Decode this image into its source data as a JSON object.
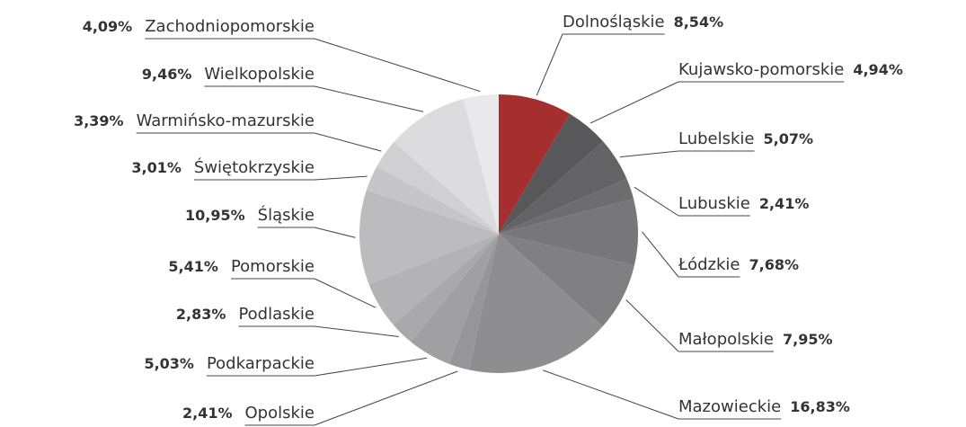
{
  "chart_data": {
    "type": "pie",
    "categories": [
      "Dolnośląskie",
      "Kujawsko-pomorskie",
      "Lubelskie",
      "Lubuskie",
      "Łódzkie",
      "Małopolskie",
      "Mazowieckie",
      "Opolskie",
      "Podkarpackie",
      "Podlaskie",
      "Pomorskie",
      "Śląskie",
      "Świętokrzyskie",
      "Warmińsko-mazurskie",
      "Wielkopolskie",
      "Zachodniopomorskie"
    ],
    "values": [
      8.54,
      4.94,
      5.07,
      2.41,
      7.68,
      7.95,
      16.83,
      2.41,
      5.03,
      2.83,
      5.41,
      10.95,
      3.01,
      3.39,
      9.46,
      4.09
    ],
    "value_labels": [
      "8,54%",
      "4,94%",
      "5,07%",
      "2,41%",
      "7,68%",
      "7,95%",
      "16,83%",
      "2,41%",
      "5,03%",
      "2,83%",
      "5,41%",
      "10,95%",
      "3,01%",
      "3,39%",
      "9,46%",
      "4,09%"
    ],
    "colors": [
      "#a52f2f",
      "#58585a",
      "#636366",
      "#6d6d70",
      "#77777a",
      "#808083",
      "#8e8e91",
      "#96969a",
      "#a0a0a3",
      "#a9a9ac",
      "#b3b3b6",
      "#bcbcbf",
      "#c6c6c9",
      "#d0d0d3",
      "#dcdcdf",
      "#e9e9ec"
    ]
  }
}
